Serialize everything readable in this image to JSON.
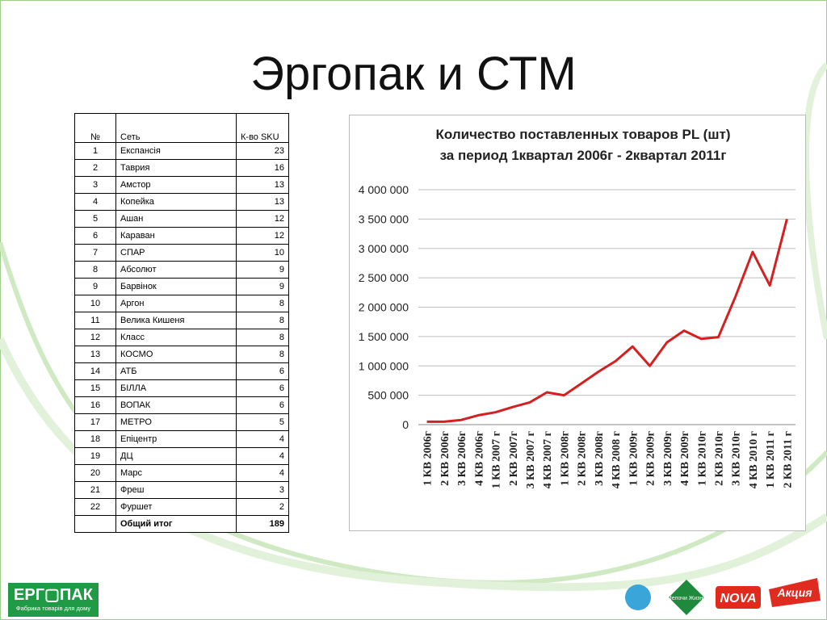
{
  "title": "Эргопак  и СТМ",
  "table": {
    "headers": [
      "№",
      "Сеть",
      "К-во SKU"
    ],
    "rows": [
      [
        "1",
        "Експансія",
        "23"
      ],
      [
        "2",
        "Таврия",
        "16"
      ],
      [
        "3",
        "Амстор",
        "13"
      ],
      [
        "4",
        "Копейка",
        "13"
      ],
      [
        "5",
        "Ашан",
        "12"
      ],
      [
        "6",
        "Караван",
        "12"
      ],
      [
        "7",
        "СПАР",
        "10"
      ],
      [
        "8",
        "Абсолют",
        "9"
      ],
      [
        "9",
        "Барвінок",
        "9"
      ],
      [
        "10",
        "Аргон",
        "8"
      ],
      [
        "11",
        "Велика Кишеня",
        "8"
      ],
      [
        "12",
        "Класс",
        "8"
      ],
      [
        "13",
        "КОСМО",
        "8"
      ],
      [
        "14",
        "АТБ",
        "6"
      ],
      [
        "15",
        "БІЛЛА",
        "6"
      ],
      [
        "16",
        "ВОПАК",
        "6"
      ],
      [
        "17",
        "МЕТРО",
        "5"
      ],
      [
        "18",
        "Епіцентр",
        "4"
      ],
      [
        "19",
        "ДЦ",
        "4"
      ],
      [
        "20",
        "Марс",
        "4"
      ],
      [
        "21",
        "Фреш",
        "3"
      ],
      [
        "22",
        "Фуршет",
        "2"
      ]
    ],
    "total": {
      "label": "Общий итог",
      "value": "189"
    }
  },
  "chart_data": {
    "type": "line",
    "title": "Количество поставленных товаров PL (шт)",
    "subtitle": "за период  1квартал 2006г - 2квартал 2011г",
    "categories": [
      "1 КВ 2006г",
      "2 КВ 2006г",
      "3 КВ 2006г",
      "4 КВ 2006г",
      "1 КВ 2007 г",
      "2 КВ 2007г",
      "3 КВ 2007 г",
      "4 КВ 2007 г",
      "1 КВ 2008г",
      "2 КВ 2008г",
      "3 КВ 2008г",
      "4 КВ 2008 г",
      "1 КВ 2009г",
      "2 КВ 2009г",
      "3 КВ 2009г",
      "4 КВ 2009г",
      "1 КВ 2010г",
      "2 КВ 2010г",
      "3 КВ 2010г",
      "4 КВ 2010 г",
      "1 КВ 2011 г",
      "2 КВ 2011 г"
    ],
    "values": [
      50000,
      50000,
      80000,
      160000,
      210000,
      300000,
      380000,
      550000,
      500000,
      700000,
      900000,
      1080000,
      1330000,
      1000000,
      1400000,
      1600000,
      1460000,
      1490000,
      2180000,
      2940000,
      2370000,
      3500000
    ],
    "color": "#d42020",
    "ylim": [
      0,
      4000000
    ],
    "yticks": [
      0,
      {
        "value": 500000,
        "label": "500 000"
      },
      {
        "value": 1000000,
        "label": "1 000 000"
      },
      {
        "value": 1500000,
        "label": "1 500 000"
      },
      {
        "value": 2000000,
        "label": "2 000 000"
      },
      {
        "value": 2500000,
        "label": "2 500 000"
      },
      {
        "value": 3000000,
        "label": "3 000 000"
      },
      {
        "value": 3500000,
        "label": "3 500 000"
      },
      {
        "value": 4000000,
        "label": "4 000 000"
      }
    ],
    "grid": true
  },
  "logo": {
    "name": "ЕРГ▢ПАК",
    "tagline": "Фабрика товарів для дому"
  },
  "brands": [
    "Мелочи Жизни",
    "NOVA",
    "Акция"
  ]
}
